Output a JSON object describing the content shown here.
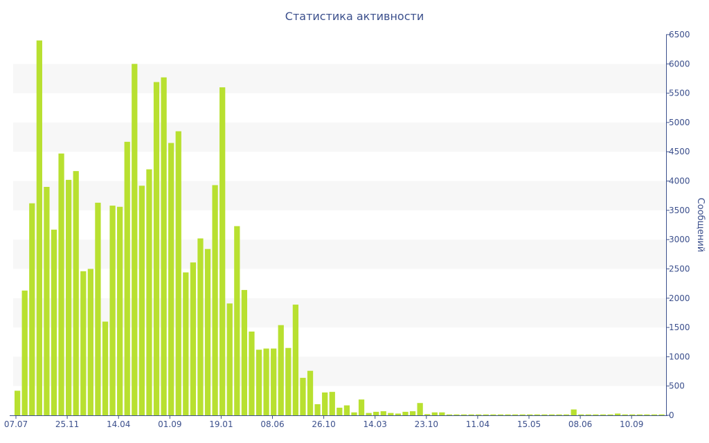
{
  "chart_data": {
    "type": "bar",
    "title": "Статистика активности",
    "ylabel": "Сообщений",
    "xlabel": "",
    "ylim": [
      0,
      6500
    ],
    "y_axis_side": "right",
    "y_ticks": [
      0,
      500,
      1000,
      1500,
      2000,
      2500,
      3000,
      3500,
      4000,
      4500,
      5000,
      5500,
      6000,
      6500
    ],
    "x_tick_labels": [
      "07.07",
      "25.11",
      "14.04",
      "01.09",
      "19.01",
      "08.06",
      "26.10",
      "14.03",
      "23.10",
      "11.04",
      "15.05",
      "08.06",
      "10.09"
    ],
    "grid": "alternating horizontal bands",
    "bar_color": "#b8e030",
    "band_color": "#f7f7f7",
    "axis_color": "#3b4f8c",
    "values": [
      420,
      2130,
      3620,
      6400,
      3900,
      3170,
      4470,
      4020,
      4170,
      2460,
      2500,
      3630,
      1600,
      3580,
      3560,
      4670,
      6000,
      3920,
      4200,
      5690,
      5770,
      4650,
      4850,
      2440,
      2610,
      3020,
      2840,
      3930,
      5600,
      1910,
      3230,
      2140,
      1430,
      1120,
      1140,
      1140,
      1540,
      1150,
      1890,
      640,
      760,
      190,
      390,
      400,
      130,
      170,
      50,
      270,
      40,
      60,
      70,
      40,
      30,
      60,
      70,
      210,
      20,
      50,
      50,
      15,
      15,
      15,
      15,
      15,
      15,
      15,
      15,
      15,
      15,
      15,
      15,
      15,
      15,
      15,
      15,
      15,
      100,
      15,
      15,
      15,
      15,
      15,
      30,
      15,
      15,
      15,
      15,
      15,
      15
    ]
  }
}
